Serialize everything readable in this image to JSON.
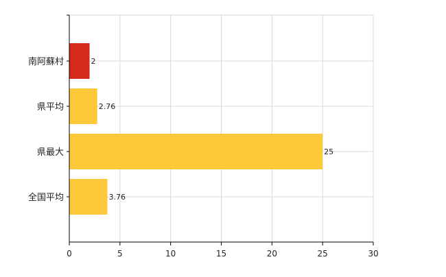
{
  "chart_data": {
    "type": "bar",
    "orientation": "horizontal",
    "categories": [
      "南阿蘇村",
      "県平均",
      "県最大",
      "全国平均"
    ],
    "values": [
      2,
      2.76,
      25,
      3.76
    ],
    "value_labels": [
      "2",
      "2.76",
      "25",
      "3.76"
    ],
    "bar_colors": [
      "#d42a1c",
      "#fdc93b",
      "#fdc93b",
      "#fdc93b"
    ],
    "xlim": [
      0,
      30
    ],
    "xticks": [
      0,
      5,
      10,
      15,
      20,
      25,
      30
    ],
    "xtick_labels": [
      "0",
      "5",
      "10",
      "15",
      "20",
      "25",
      "30"
    ],
    "grid": true,
    "legend": "none"
  }
}
